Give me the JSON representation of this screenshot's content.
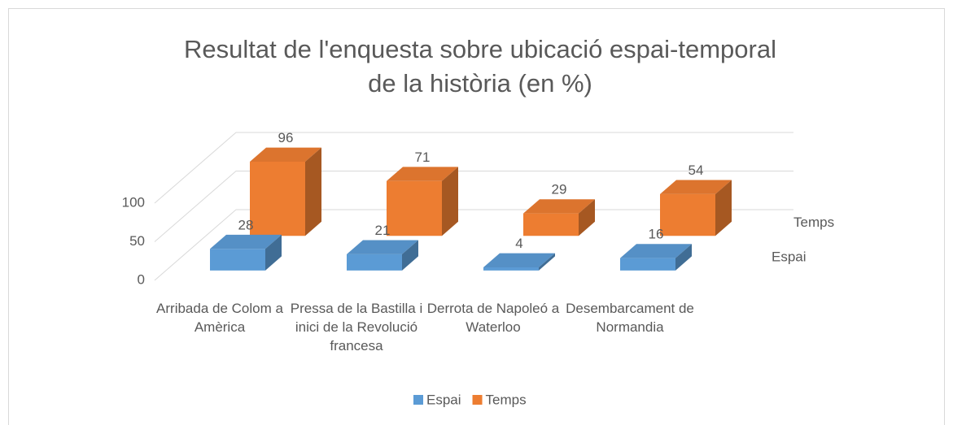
{
  "chart_data": {
    "type": "bar3d",
    "title": "Resultat de l'enquesta sobre ubicació espai-temporal de la història (en %)",
    "categories": [
      "Arribada de Colom a Amèrica",
      "Pressa de la Bastilla i inici de la Revolució francesa",
      "Derrota de Napoleó a Waterloo",
      "Desembarcament de Normandia"
    ],
    "series": [
      {
        "name": "Espai",
        "color": "#5b9bd5",
        "values": [
          28,
          21,
          4,
          16
        ]
      },
      {
        "name": "Temps",
        "color": "#ed7d31",
        "values": [
          96,
          71,
          29,
          54
        ]
      }
    ],
    "ylim": [
      0,
      100
    ],
    "yticks": [
      0,
      50,
      100
    ],
    "grid": true,
    "legend": "bottom"
  }
}
